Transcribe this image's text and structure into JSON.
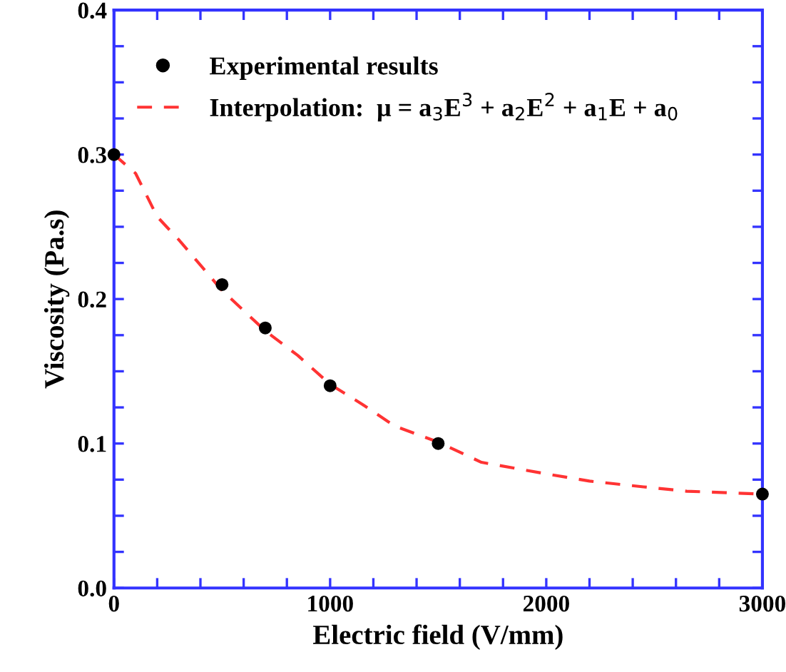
{
  "chart_data": {
    "type": "scatter",
    "xlabel": "Electric field (V/mm)",
    "ylabel": "Viscosity (Pa.s)",
    "xlim": [
      0,
      3000
    ],
    "ylim": [
      0.0,
      0.4
    ],
    "xticks": [
      0,
      {
        "value": 200,
        "label": null
      },
      {
        "value": 400,
        "label": null
      },
      {
        "value": 600,
        "label": null
      },
      {
        "value": 800,
        "label": null
      },
      1000,
      {
        "value": 1200,
        "label": null
      },
      {
        "value": 1400,
        "label": null
      },
      {
        "value": 1600,
        "label": null
      },
      {
        "value": 1800,
        "label": null
      },
      2000,
      {
        "value": 2200,
        "label": null
      },
      {
        "value": 2400,
        "label": null
      },
      {
        "value": 2600,
        "label": null
      },
      {
        "value": 2800,
        "label": null
      },
      3000
    ],
    "yticks": [
      {
        "value": 0.0,
        "label": "0.0"
      },
      {
        "value": 0.025,
        "label": null
      },
      {
        "value": 0.05,
        "label": null
      },
      {
        "value": 0.075,
        "label": null
      },
      0.1,
      {
        "value": 0.125,
        "label": null
      },
      {
        "value": 0.15,
        "label": null
      },
      {
        "value": 0.175,
        "label": null
      },
      0.2,
      {
        "value": 0.225,
        "label": null
      },
      {
        "value": 0.25,
        "label": null
      },
      {
        "value": 0.275,
        "label": null
      },
      0.3,
      {
        "value": 0.325,
        "label": null
      },
      {
        "value": 0.35,
        "label": null
      },
      {
        "value": 0.375,
        "label": null
      },
      0.4
    ],
    "grid": false,
    "legend": "top left",
    "series": [
      {
        "name": "Experimental results",
        "color": "#000000",
        "marker": "circle",
        "x": [
          0,
          500,
          700,
          1000,
          1500,
          3000
        ],
        "values": [
          0.3,
          0.21,
          0.18,
          0.14,
          0.1,
          0.065
        ]
      },
      {
        "name": "Interpolation:  μ = a$_{3}$E$^{3}$ + a$_{2}$E$^{2}$ + a$_{1}$E + a$_{0}$",
        "type": "line",
        "color": "#ff3333",
        "line_style": "dashed",
        "marker": "none",
        "x": [
          0,
          100,
          200,
          300,
          500,
          700,
          850,
          1000,
          1150,
          1300,
          1500,
          1700,
          2000,
          2200,
          2450,
          2650,
          3000
        ],
        "values": [
          0.3,
          0.287,
          0.257,
          0.241,
          0.206,
          0.178,
          0.161,
          0.141,
          0.127,
          0.112,
          0.101,
          0.087,
          0.079,
          0.074,
          0.07,
          0.067,
          0.065
        ]
      }
    ]
  }
}
